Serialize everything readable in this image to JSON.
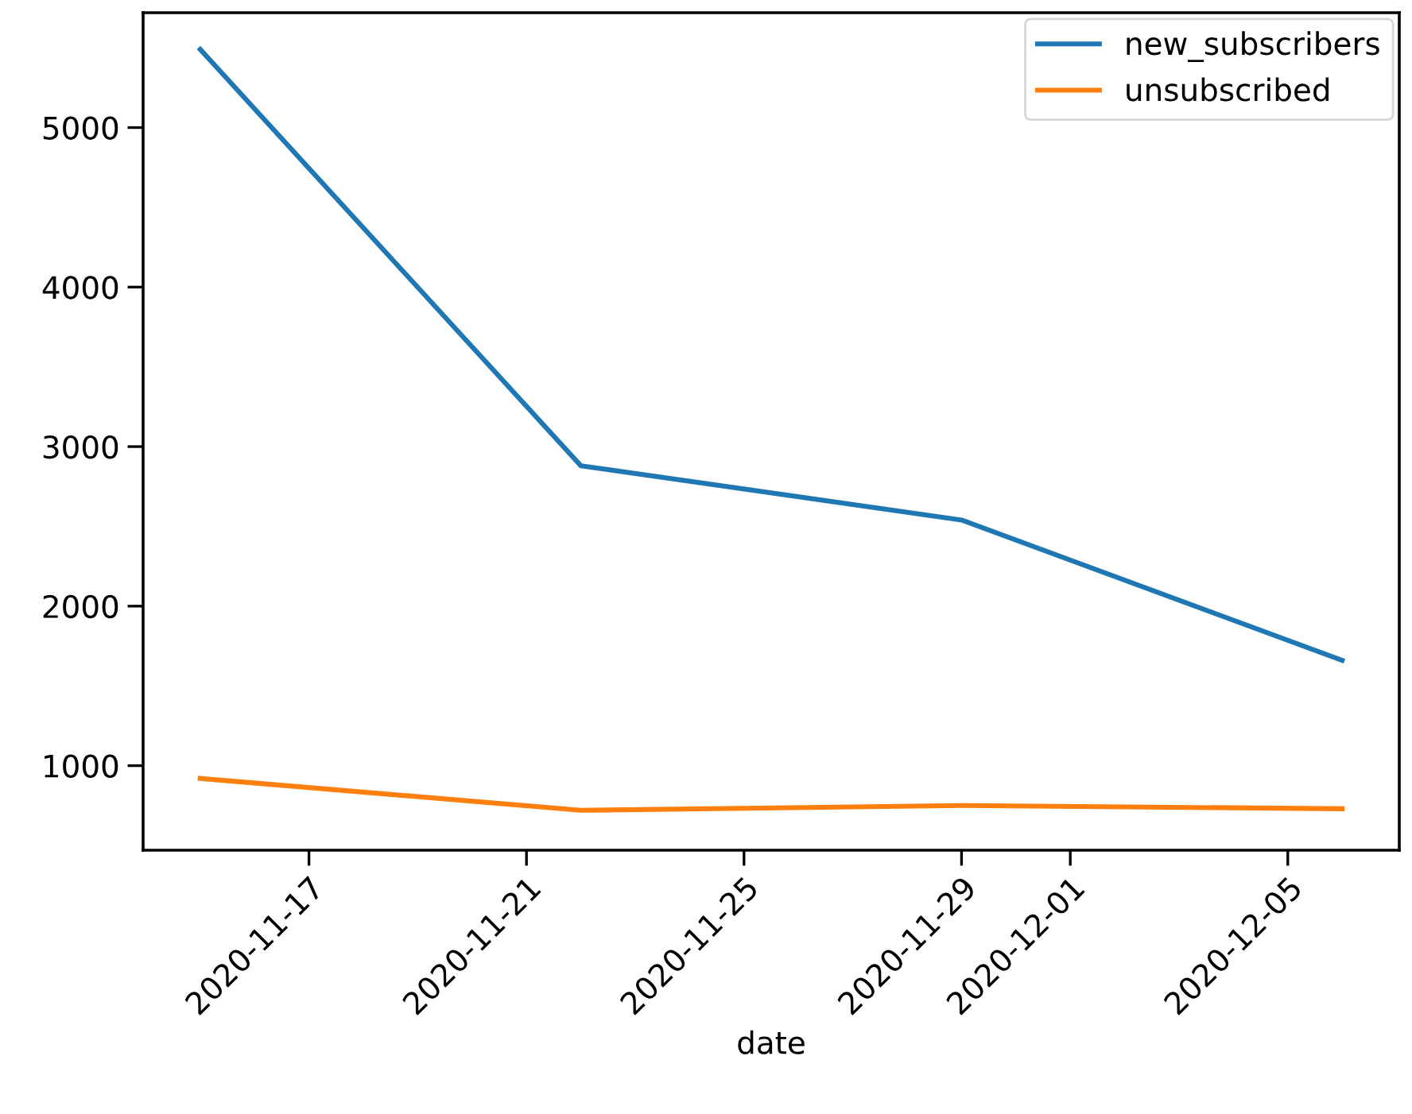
{
  "chart_data": {
    "type": "line",
    "xlabel": "date",
    "x": [
      "2020-11-15",
      "2020-11-22",
      "2020-11-29",
      "2020-12-06"
    ],
    "series": [
      {
        "name": "new_subscribers",
        "color": "#1f77b4",
        "values": [
          5490,
          2880,
          2540,
          1660
        ]
      },
      {
        "name": "unsubscribed",
        "color": "#ff7f0e",
        "values": [
          920,
          720,
          750,
          730
        ]
      }
    ],
    "xlim": [
      "2020-11-13T22:48",
      "2020-12-07T01:12"
    ],
    "xticks": [
      "2020-11-17",
      "2020-11-21",
      "2020-11-25",
      "2020-11-29",
      "2020-12-01",
      "2020-12-05"
    ],
    "ylim": [
      470,
      5720
    ],
    "yticks": [
      1000,
      2000,
      3000,
      4000,
      5000
    ],
    "grid": false,
    "legend": "top right",
    "marker": "none",
    "line_style": "solid"
  }
}
